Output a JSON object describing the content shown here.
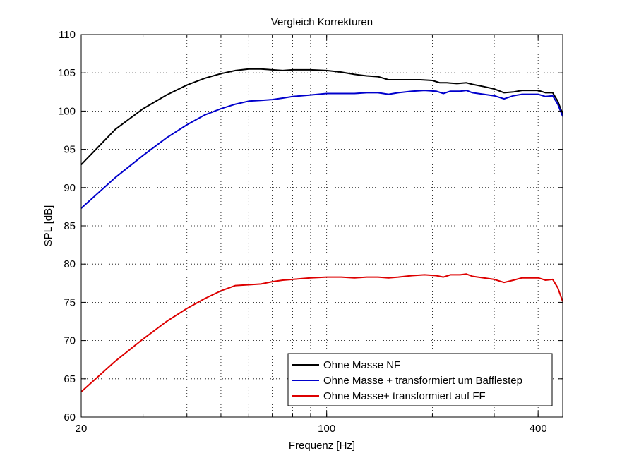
{
  "chart_data": {
    "type": "line",
    "title": "Vergleich Korrekturen",
    "xlabel": "Frequenz [Hz]",
    "ylabel": "SPL [dB]",
    "xscale": "log",
    "xlim": [
      20,
      470
    ],
    "ylim": [
      60,
      110
    ],
    "grid": true,
    "legend_position": "bottom-right",
    "x_ticks": [
      20,
      100,
      400
    ],
    "x_tick_labels": [
      "20",
      "100",
      "400"
    ],
    "y_ticks": [
      60,
      65,
      70,
      75,
      80,
      85,
      90,
      95,
      100,
      105,
      110
    ],
    "y_tick_labels": [
      "60",
      "65",
      "70",
      "75",
      "80",
      "85",
      "90",
      "95",
      "100",
      "105",
      "110"
    ],
    "series": [
      {
        "name": "Ohne Masse NF",
        "color": "#000000",
        "points": [
          [
            20,
            93.0
          ],
          [
            25,
            97.6
          ],
          [
            30,
            100.3
          ],
          [
            35,
            102.1
          ],
          [
            40,
            103.4
          ],
          [
            45,
            104.3
          ],
          [
            50,
            104.9
          ],
          [
            55,
            105.3
          ],
          [
            60,
            105.5
          ],
          [
            65,
            105.5
          ],
          [
            70,
            105.4
          ],
          [
            75,
            105.3
          ],
          [
            80,
            105.4
          ],
          [
            90,
            105.4
          ],
          [
            100,
            105.3
          ],
          [
            110,
            105.1
          ],
          [
            120,
            104.8
          ],
          [
            130,
            104.6
          ],
          [
            140,
            104.5
          ],
          [
            150,
            104.1
          ],
          [
            160,
            104.1
          ],
          [
            170,
            104.1
          ],
          [
            185,
            104.1
          ],
          [
            200,
            104.0
          ],
          [
            210,
            103.7
          ],
          [
            220,
            103.7
          ],
          [
            235,
            103.6
          ],
          [
            250,
            103.7
          ],
          [
            260,
            103.5
          ],
          [
            280,
            103.2
          ],
          [
            300,
            102.9
          ],
          [
            320,
            102.4
          ],
          [
            340,
            102.5
          ],
          [
            360,
            102.7
          ],
          [
            380,
            102.7
          ],
          [
            400,
            102.7
          ],
          [
            420,
            102.4
          ],
          [
            440,
            102.4
          ],
          [
            455,
            101.3
          ],
          [
            470,
            99.6
          ]
        ]
      },
      {
        "name": "Ohne Masse + transformiert um Bafflestep",
        "color": "#0000cc",
        "points": [
          [
            20,
            87.3
          ],
          [
            25,
            91.3
          ],
          [
            30,
            94.2
          ],
          [
            35,
            96.5
          ],
          [
            40,
            98.2
          ],
          [
            45,
            99.5
          ],
          [
            50,
            100.3
          ],
          [
            55,
            100.9
          ],
          [
            60,
            101.3
          ],
          [
            65,
            101.4
          ],
          [
            70,
            101.5
          ],
          [
            75,
            101.7
          ],
          [
            80,
            101.9
          ],
          [
            90,
            102.1
          ],
          [
            100,
            102.3
          ],
          [
            110,
            102.3
          ],
          [
            120,
            102.3
          ],
          [
            130,
            102.4
          ],
          [
            140,
            102.4
          ],
          [
            150,
            102.2
          ],
          [
            160,
            102.4
          ],
          [
            175,
            102.6
          ],
          [
            190,
            102.7
          ],
          [
            205,
            102.6
          ],
          [
            215,
            102.3
          ],
          [
            225,
            102.6
          ],
          [
            240,
            102.6
          ],
          [
            250,
            102.7
          ],
          [
            260,
            102.4
          ],
          [
            280,
            102.2
          ],
          [
            300,
            102.0
          ],
          [
            320,
            101.6
          ],
          [
            340,
            102.0
          ],
          [
            360,
            102.2
          ],
          [
            380,
            102.2
          ],
          [
            400,
            102.2
          ],
          [
            420,
            101.9
          ],
          [
            440,
            102.0
          ],
          [
            455,
            100.9
          ],
          [
            470,
            99.3
          ]
        ]
      },
      {
        "name": "Ohne Masse+ transformiert auf FF",
        "color": "#dd0000",
        "points": [
          [
            20,
            63.3
          ],
          [
            25,
            67.3
          ],
          [
            30,
            70.2
          ],
          [
            35,
            72.5
          ],
          [
            40,
            74.2
          ],
          [
            45,
            75.5
          ],
          [
            50,
            76.5
          ],
          [
            55,
            77.2
          ],
          [
            60,
            77.3
          ],
          [
            65,
            77.4
          ],
          [
            70,
            77.7
          ],
          [
            75,
            77.9
          ],
          [
            80,
            78.0
          ],
          [
            90,
            78.2
          ],
          [
            100,
            78.3
          ],
          [
            110,
            78.3
          ],
          [
            120,
            78.2
          ],
          [
            130,
            78.3
          ],
          [
            140,
            78.3
          ],
          [
            150,
            78.2
          ],
          [
            160,
            78.3
          ],
          [
            175,
            78.5
          ],
          [
            190,
            78.6
          ],
          [
            205,
            78.5
          ],
          [
            215,
            78.3
          ],
          [
            225,
            78.6
          ],
          [
            240,
            78.6
          ],
          [
            250,
            78.7
          ],
          [
            260,
            78.4
          ],
          [
            280,
            78.2
          ],
          [
            300,
            78.0
          ],
          [
            320,
            77.6
          ],
          [
            340,
            77.9
          ],
          [
            360,
            78.2
          ],
          [
            380,
            78.2
          ],
          [
            400,
            78.2
          ],
          [
            420,
            77.9
          ],
          [
            440,
            78.0
          ],
          [
            455,
            76.9
          ],
          [
            470,
            75.1
          ]
        ]
      }
    ]
  }
}
